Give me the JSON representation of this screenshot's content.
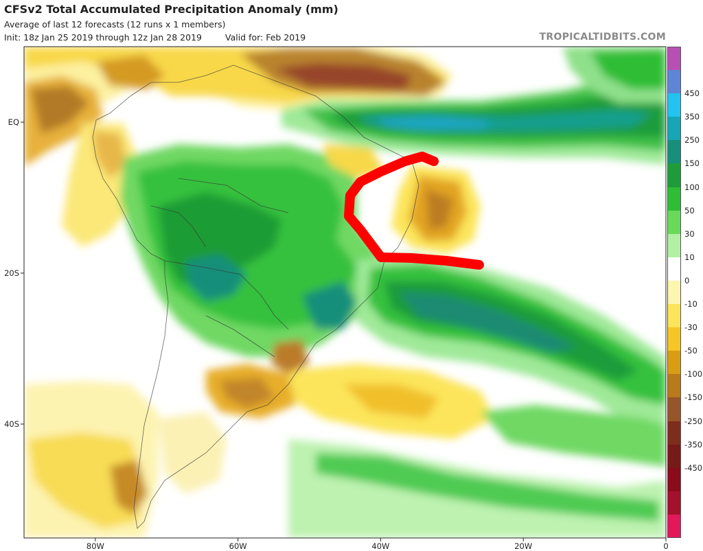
{
  "header": {
    "title": "CFSv2 Total Accumulated Precipitation Anomaly (mm)",
    "subtitle": "Average of last 12 forecasts (12 runs x 1 members)",
    "init": "Init: 18z Jan 25 2019 through 12z Jan 28 2019",
    "valid": "Valid for: Feb 2019",
    "credit": "TROPICALTIDBITS.COM"
  },
  "map": {
    "lat_labels": [
      "EQ",
      "20S",
      "40S"
    ],
    "lon_labels": [
      "80W",
      "60W",
      "40W",
      "20W",
      "0"
    ],
    "lat_values": [
      0,
      -20,
      -40
    ],
    "lon_values": [
      -80,
      -60,
      -40,
      -20,
      0
    ]
  },
  "colorbar": {
    "labels": [
      "450",
      "350",
      "250",
      "150",
      "100",
      "50",
      "30",
      "10",
      "0",
      "-10",
      "-30",
      "-50",
      "-100",
      "-150",
      "-250",
      "-350",
      "-450"
    ],
    "colors": [
      "#b84fb4",
      "#5f86d6",
      "#22c3ee",
      "#17a6b6",
      "#178f7a",
      "#1f9c3a",
      "#2fbd35",
      "#69d95a",
      "#b2f0a4",
      "#ffffff",
      "#fdf6b0",
      "#fce55a",
      "#f5c625",
      "#d99d13",
      "#b87a1a",
      "#96552a",
      "#7e2d1d",
      "#761b18",
      "#8a0b1a",
      "#a4112c",
      "#e2185a"
    ]
  },
  "annotation": {
    "color": "#ff0000"
  }
}
